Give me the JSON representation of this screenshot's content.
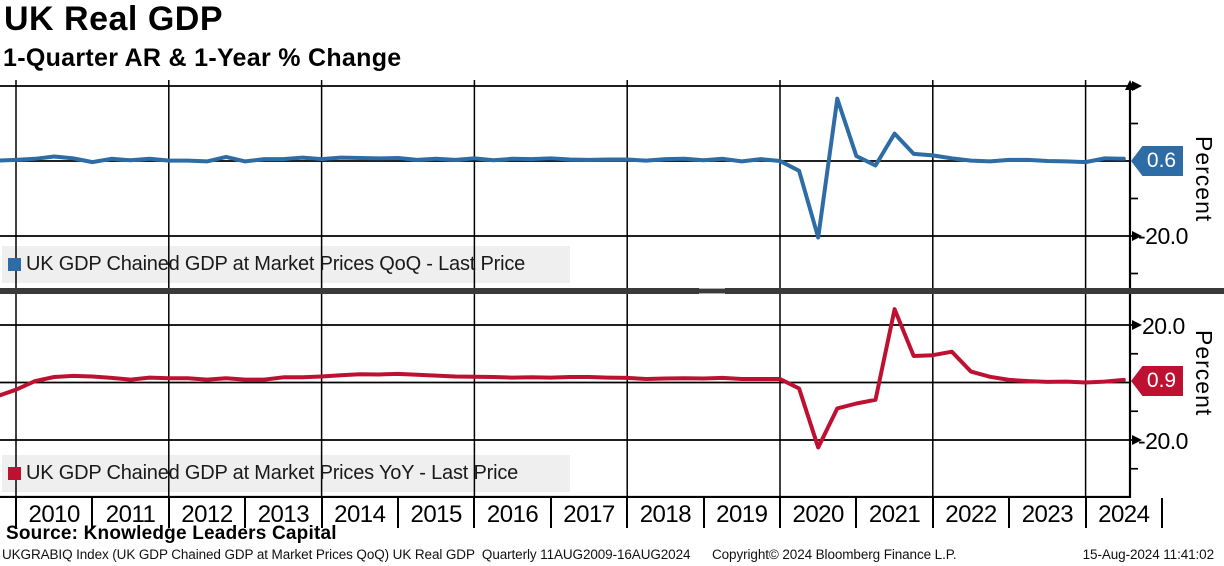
{
  "header": {
    "title": "UK Real GDP",
    "subtitle": "1-Quarter AR & 1-Year % Change"
  },
  "colors": {
    "blue": "#2E6CA6",
    "red": "#BE1132",
    "grid": "#000000",
    "legend_bg": "#EFEFEF",
    "separator": "#3A3A3A"
  },
  "x_axis": {
    "years": [
      "2010",
      "2011",
      "2012",
      "2013",
      "2014",
      "2015",
      "2016",
      "2017",
      "2018",
      "2019",
      "2020",
      "2021",
      "2022",
      "2023",
      "2024"
    ],
    "gridline_years": [
      2010,
      2012,
      2014,
      2016,
      2018,
      2020,
      2022,
      2024
    ]
  },
  "chart_data": [
    {
      "type": "line",
      "panel": "top",
      "title": "UK Real GDP",
      "subtitle": "1-Quarter AR & 1-Year % Change",
      "legend": "UK GDP Chained GDP at Market Prices QoQ - Last Price",
      "last_price_tag": "0.6",
      "axis_title": "Percent",
      "color_key": "blue",
      "x_start": 2009.75,
      "x_step": 0.25,
      "values": [
        0.1,
        0.3,
        0.6,
        1.2,
        0.7,
        -0.3,
        0.6,
        0.2,
        0.6,
        0.1,
        0.1,
        -0.1,
        1.1,
        -0.1,
        0.5,
        0.5,
        0.9,
        0.5,
        0.9,
        0.8,
        0.7,
        0.8,
        0.3,
        0.6,
        0.3,
        0.7,
        0.2,
        0.6,
        0.5,
        0.7,
        0.4,
        0.3,
        0.4,
        0.4,
        0.1,
        0.5,
        0.6,
        0.2,
        0.6,
        -0.1,
        0.5,
        0.0,
        -2.6,
        -20.4,
        16.6,
        1.3,
        -1.2,
        7.3,
        1.9,
        1.5,
        0.7,
        0.1,
        -0.1,
        0.3,
        0.3,
        0.0,
        -0.1,
        -0.3,
        0.7,
        0.6
      ],
      "y_gridlines": [
        {
          "value": 20,
          "arrow": true,
          "label": ""
        },
        {
          "value": 0,
          "arrow": false,
          "label": ""
        },
        {
          "value": -20,
          "arrow": true,
          "label": "-20.0"
        }
      ],
      "y_minor_ticks": [
        10,
        -10,
        -30
      ],
      "ylim": [
        -34,
        21.5
      ],
      "grid": true,
      "legend_position": "bottom-left"
    },
    {
      "type": "line",
      "panel": "bottom",
      "title": "UK Real GDP",
      "subtitle": "1-Quarter AR & 1-Year % Change",
      "legend": "UK GDP Chained GDP at Market Prices YoY - Last Price",
      "last_price_tag": "0.9",
      "axis_title": "Percent",
      "color_key": "red",
      "x_start": 2009.75,
      "x_step": 0.25,
      "values": [
        -4.8,
        -2.5,
        0.5,
        1.9,
        2.3,
        2.1,
        1.6,
        1.0,
        1.7,
        1.5,
        1.5,
        1.0,
        1.5,
        1.0,
        1.0,
        1.8,
        1.8,
        2.1,
        2.5,
        2.9,
        2.8,
        3.0,
        2.7,
        2.4,
        2.1,
        2.0,
        1.9,
        1.7,
        1.8,
        1.7,
        1.9,
        1.9,
        1.7,
        1.6,
        1.2,
        1.4,
        1.5,
        1.4,
        1.6,
        1.2,
        1.2,
        1.2,
        -2.1,
        -22.6,
        -9.0,
        -7.3,
        -6.0,
        25.5,
        9.2,
        9.5,
        10.7,
        3.8,
        2.0,
        0.9,
        0.5,
        0.2,
        0.3,
        0.0,
        0.3,
        0.9
      ],
      "y_gridlines": [
        {
          "value": 20,
          "arrow": true,
          "label": "20.0"
        },
        {
          "value": 0,
          "arrow": false,
          "label": ""
        },
        {
          "value": -20,
          "arrow": true,
          "label": "-20.0"
        }
      ],
      "y_minor_ticks": [
        10,
        -10,
        -30
      ],
      "ylim": [
        -40,
        31
      ],
      "grid": true,
      "legend_position": "bottom-left"
    }
  ],
  "right_axis": {
    "top_tag": "0.6",
    "bottom_tag": "0.9",
    "top_label_neg20": "-20.0",
    "bottom_label_pos20": "20.0",
    "bottom_label_neg20": "-20.0",
    "unit": "Percent"
  },
  "footer": {
    "source": "Source: Knowledge Leaders Capital",
    "left": "UKGRABIQ Index (UK GDP Chained GDP at Market Prices QoQ) UK Real GDP  Quarterly 11AUG2009-16AUG2024",
    "center": "Copyright© 2024 Bloomberg Finance L.P.",
    "right": "15-Aug-2024 11:41:02"
  }
}
